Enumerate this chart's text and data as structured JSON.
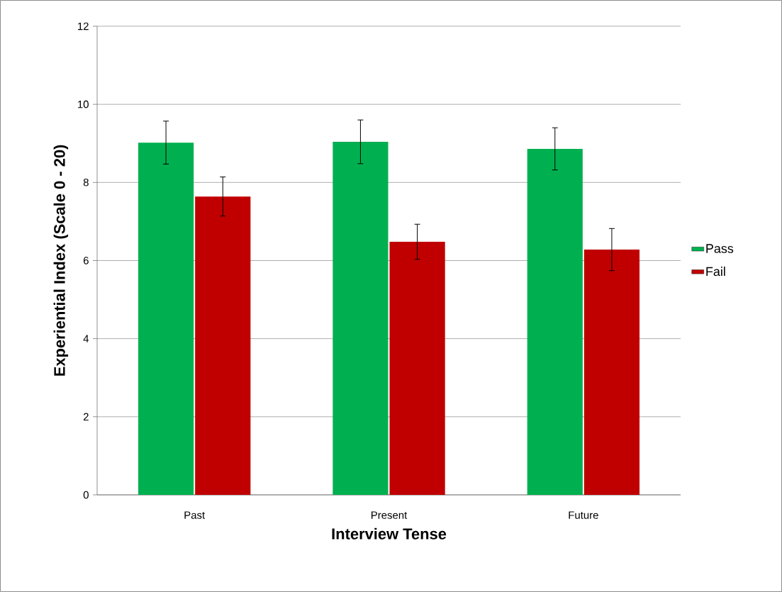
{
  "chart_data": {
    "type": "bar",
    "xlabel": "Interview Tense",
    "ylabel": "Experiential Index (Scale 0 - 20)",
    "categories": [
      "Past",
      "Present",
      "Future"
    ],
    "series": [
      {
        "name": "Pass",
        "color": "#00b050",
        "values": [
          9.02,
          9.04,
          8.86
        ],
        "errors": [
          0.55,
          0.56,
          0.54
        ]
      },
      {
        "name": "Fail",
        "color": "#c00000",
        "values": [
          7.64,
          6.48,
          6.28
        ],
        "errors": [
          0.5,
          0.45,
          0.54
        ]
      }
    ],
    "ylim": [
      0,
      12
    ],
    "yticks": [
      0,
      2,
      4,
      6,
      8,
      10,
      12
    ],
    "grid": "y",
    "legend": "right"
  }
}
